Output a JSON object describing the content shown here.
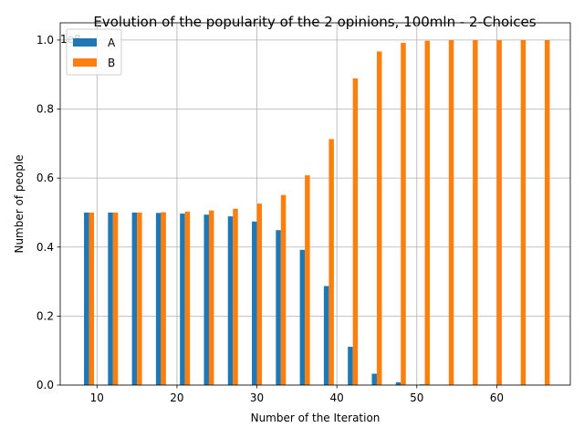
{
  "chart_data": {
    "type": "bar",
    "title": "Evolution of the popularity of the 2 opinions, 100mln - 2-Choices",
    "xlabel": "Number of the Iteration",
    "ylabel": "Number of people",
    "y_multiplier": "1e8",
    "x": [
      9,
      12,
      15,
      18,
      21,
      24,
      27,
      30,
      33,
      36,
      39,
      42,
      45,
      48,
      51,
      54,
      57,
      60,
      63,
      66
    ],
    "series": [
      {
        "name": "A",
        "color": "#1f77b4",
        "values": [
          0.5,
          0.5,
          0.5,
          0.499,
          0.497,
          0.494,
          0.489,
          0.474,
          0.449,
          0.392,
          0.287,
          0.111,
          0.033,
          0.008,
          0.002,
          0,
          0,
          0,
          0,
          0
        ]
      },
      {
        "name": "B",
        "color": "#ff7f0e",
        "values": [
          0.5,
          0.5,
          0.5,
          0.501,
          0.503,
          0.506,
          0.511,
          0.526,
          0.551,
          0.608,
          0.713,
          0.889,
          0.967,
          0.992,
          0.998,
          1.0,
          1.0,
          1.0,
          1.0,
          1.0
        ]
      }
    ],
    "xlim": [
      5.4,
      69.2
    ],
    "ylim": [
      0,
      1.05
    ],
    "xticks": [
      10,
      20,
      30,
      40,
      50,
      60
    ],
    "yticks": [
      0.0,
      0.2,
      0.4,
      0.6,
      0.8,
      1.0
    ],
    "grid": true,
    "legend_position": "top-left"
  }
}
